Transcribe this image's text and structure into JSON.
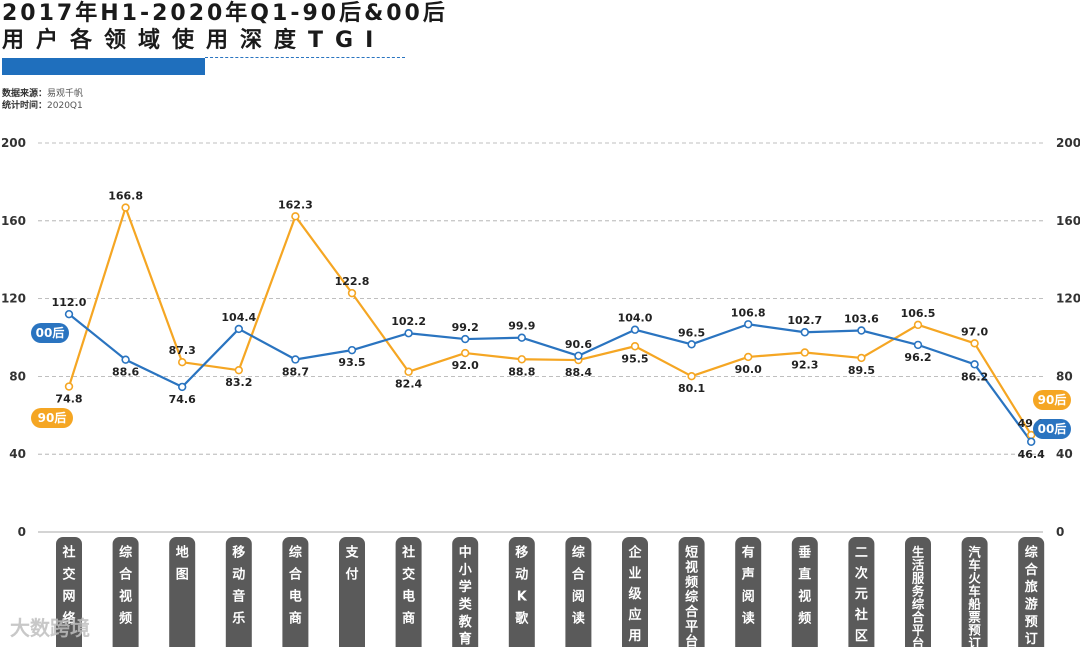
{
  "title": {
    "line1": "2017年H1-2020年Q1-90后&00后",
    "line2": "用户各领域使用深度TGI"
  },
  "meta": {
    "source_label": "数据来源：",
    "source_value": "易观千帆",
    "period_label": "统计时间：",
    "period_value": "2020Q1"
  },
  "watermark": "大数跨境",
  "colors": {
    "series_00": "#2a74c0",
    "series_90": "#f5a623",
    "grid": "#aaaaaa",
    "category_box": "#5a5a5a"
  },
  "chart_data": {
    "type": "line",
    "ylim": [
      0,
      200
    ],
    "yticks": [
      0,
      40,
      80,
      120,
      160,
      200
    ],
    "categories": [
      "社交网络",
      "综合视频",
      "地图",
      "移动音乐",
      "综合电商",
      "支付",
      "社交电商",
      "中小学类教育",
      "移动K歌",
      "综合阅读",
      "企业级应用",
      "短视频综合平台",
      "有声阅读",
      "垂直视频",
      "二次元社区",
      "生活服务综合平台",
      "汽车火车船票预订",
      "综合旅游预订"
    ],
    "series": [
      {
        "name": "00后",
        "values": [
          112.0,
          88.6,
          74.6,
          104.4,
          88.7,
          93.5,
          102.2,
          99.2,
          99.9,
          90.6,
          104.0,
          96.5,
          106.8,
          102.7,
          103.6,
          96.2,
          86.2,
          46.4
        ]
      },
      {
        "name": "90后",
        "values": [
          74.8,
          166.8,
          87.3,
          83.2,
          162.3,
          122.8,
          82.4,
          92.0,
          88.8,
          88.4,
          95.5,
          80.1,
          90.0,
          92.3,
          89.5,
          106.5,
          97.0,
          49.9
        ]
      }
    ]
  }
}
